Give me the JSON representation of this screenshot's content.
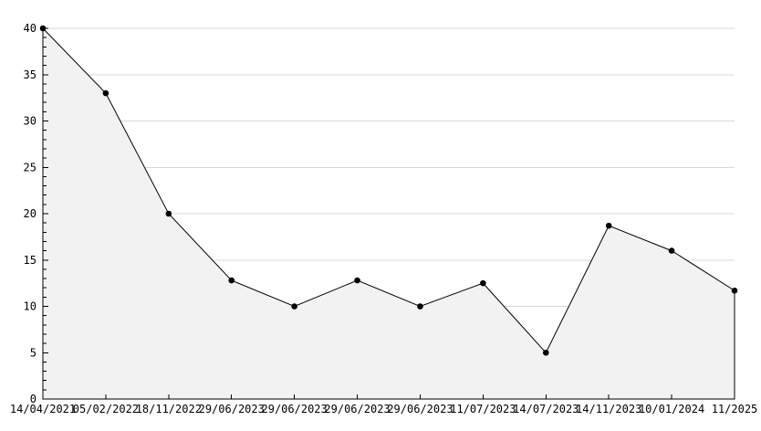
{
  "chart_data": {
    "type": "area",
    "title": "",
    "xlabel": "",
    "ylabel": "",
    "categories": [
      "14/04/2021",
      "05/02/2022",
      "18/11/2022",
      "29/06/2023",
      "29/06/2023",
      "29/06/2023",
      "29/06/2023",
      "11/07/2023",
      "14/07/2023",
      "14/11/2023",
      "10/01/2024",
      "11/2025"
    ],
    "values": [
      40,
      33,
      20,
      12.8,
      10,
      12.8,
      10,
      12.5,
      5,
      18.7,
      16,
      11.7
    ],
    "ylim": [
      0,
      40
    ],
    "y_tick_step": 5,
    "y_minor_tick_step": 1,
    "grid": true,
    "legend": false,
    "colors": {
      "background": "#ffffff",
      "line": "#000000",
      "marker": "#000000",
      "fill": "#f2f2f2",
      "gridline": "#d9d9d9",
      "axis": "#000000",
      "text": "#000000"
    }
  }
}
